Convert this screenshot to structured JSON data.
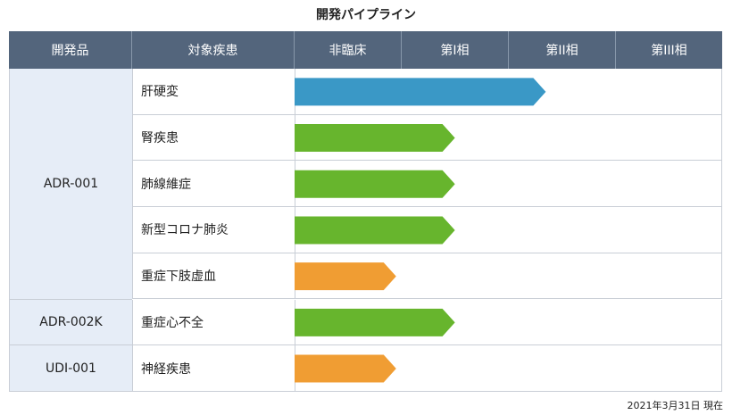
{
  "title": "開発パイプライン",
  "as_of": "2021年3月31日 現在",
  "headers": {
    "product": "開発品",
    "disease": "対象疾患",
    "stages": [
      "非臨床",
      "第I相",
      "第II相",
      "第III相"
    ]
  },
  "colors": {
    "header_bg": "#53657c",
    "product_bg": "#e6edf7",
    "bar_blue": "#3a98c6",
    "bar_green": "#67b52d",
    "bar_orange": "#f09d33"
  },
  "products": [
    {
      "name": "ADR-001",
      "rows": 5
    },
    {
      "name": "ADR-002K",
      "rows": 1
    },
    {
      "name": "UDI-001",
      "rows": 1
    }
  ],
  "chart_data": {
    "type": "bar",
    "title": "開発パイプライン",
    "stage_scale": [
      "非臨床",
      "第I相",
      "第II相",
      "第III相"
    ],
    "xlim": [
      0,
      4
    ],
    "categories": [
      "肝硬変",
      "腎疾患",
      "肺線維症",
      "新型コロナ肺炎",
      "重症下肢虚血",
      "重症心不全",
      "神経疾患"
    ],
    "product_of_row": [
      "ADR-001",
      "ADR-001",
      "ADR-001",
      "ADR-001",
      "ADR-001",
      "ADR-002K",
      "UDI-001"
    ],
    "values": [
      2.35,
      1.5,
      1.5,
      1.5,
      0.95,
      1.5,
      0.95
    ],
    "bar_colors": [
      "#3a98c6",
      "#67b52d",
      "#67b52d",
      "#67b52d",
      "#f09d33",
      "#67b52d",
      "#f09d33"
    ]
  }
}
